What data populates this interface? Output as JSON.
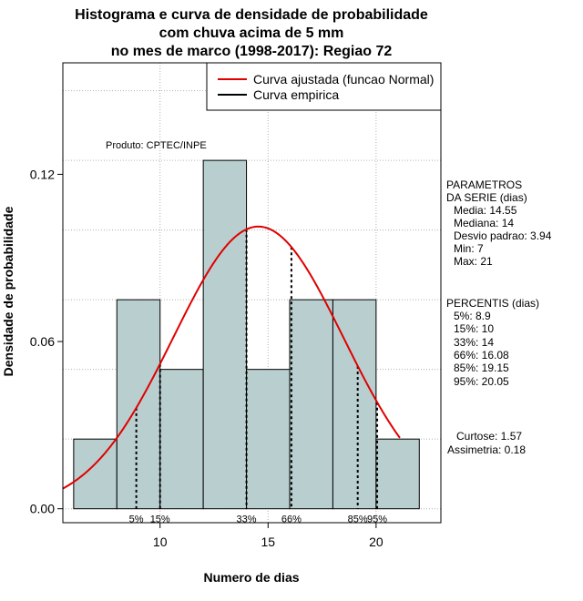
{
  "chart_data": {
    "type": "histogram",
    "title": [
      "Histograma e curva de densidade de probabilidade",
      "com chuva acima de 5 mm",
      "no mes de marco (1998-2017): Regiao 72"
    ],
    "xlabel": "Numero de dias",
    "ylabel": "Densidade de probabilidade",
    "xlim": [
      5.5,
      23
    ],
    "ylim": [
      -0.005,
      0.16
    ],
    "xticks": [
      10,
      15,
      20
    ],
    "yticks": [
      0.0,
      0.06,
      0.12
    ],
    "ytick_labels": [
      "0.00",
      "0.06",
      "0.12"
    ],
    "grid": true,
    "bar_color": "#b9cfcf",
    "bins": [
      {
        "start": 6,
        "end": 8,
        "density": 0.025
      },
      {
        "start": 8,
        "end": 10,
        "density": 0.075
      },
      {
        "start": 10,
        "end": 12,
        "density": 0.05
      },
      {
        "start": 12,
        "end": 14,
        "density": 0.125
      },
      {
        "start": 14,
        "end": 16,
        "density": 0.05
      },
      {
        "start": 16,
        "end": 18,
        "density": 0.075
      },
      {
        "start": 18,
        "end": 20,
        "density": 0.075
      },
      {
        "start": 20,
        "end": 22,
        "density": 0.025
      }
    ],
    "normal_curve": {
      "mean": 14.55,
      "sd": 3.94,
      "x_range": [
        5.5,
        21.1
      ],
      "color": "#e00000"
    },
    "percentile_lines": [
      {
        "label": "5%",
        "x": 8.9
      },
      {
        "label": "15%",
        "x": 10
      },
      {
        "label": "33%",
        "x": 14
      },
      {
        "label": "66%",
        "x": 16.08
      },
      {
        "label": "85%",
        "x": 19.15
      },
      {
        "label": "95%",
        "x": 20.05
      }
    ],
    "legend": {
      "position": "top-right",
      "entries": [
        {
          "label": "Curva ajustada (funcao Normal)",
          "color": "#e00000"
        },
        {
          "label": "Curva empirica",
          "color": "#000000"
        }
      ]
    },
    "annotation": "Produto: CPTEC/INPE"
  },
  "side_panel": {
    "parametros": [
      "PARAMETROS",
      "DA SERIE (dias)",
      "Media: 14.55",
      "Mediana: 14",
      "Desvio padrao: 3.94",
      "Min: 7",
      "Max: 21"
    ],
    "percentis": [
      "PERCENTIS (dias)",
      "5%: 8.9",
      "15%: 10",
      "33%: 14",
      "66%: 16.08",
      "85%: 19.15",
      "95%: 20.05"
    ],
    "shape": [
      "Curtose: 1.57",
      "Assimetria: 0.18"
    ]
  }
}
